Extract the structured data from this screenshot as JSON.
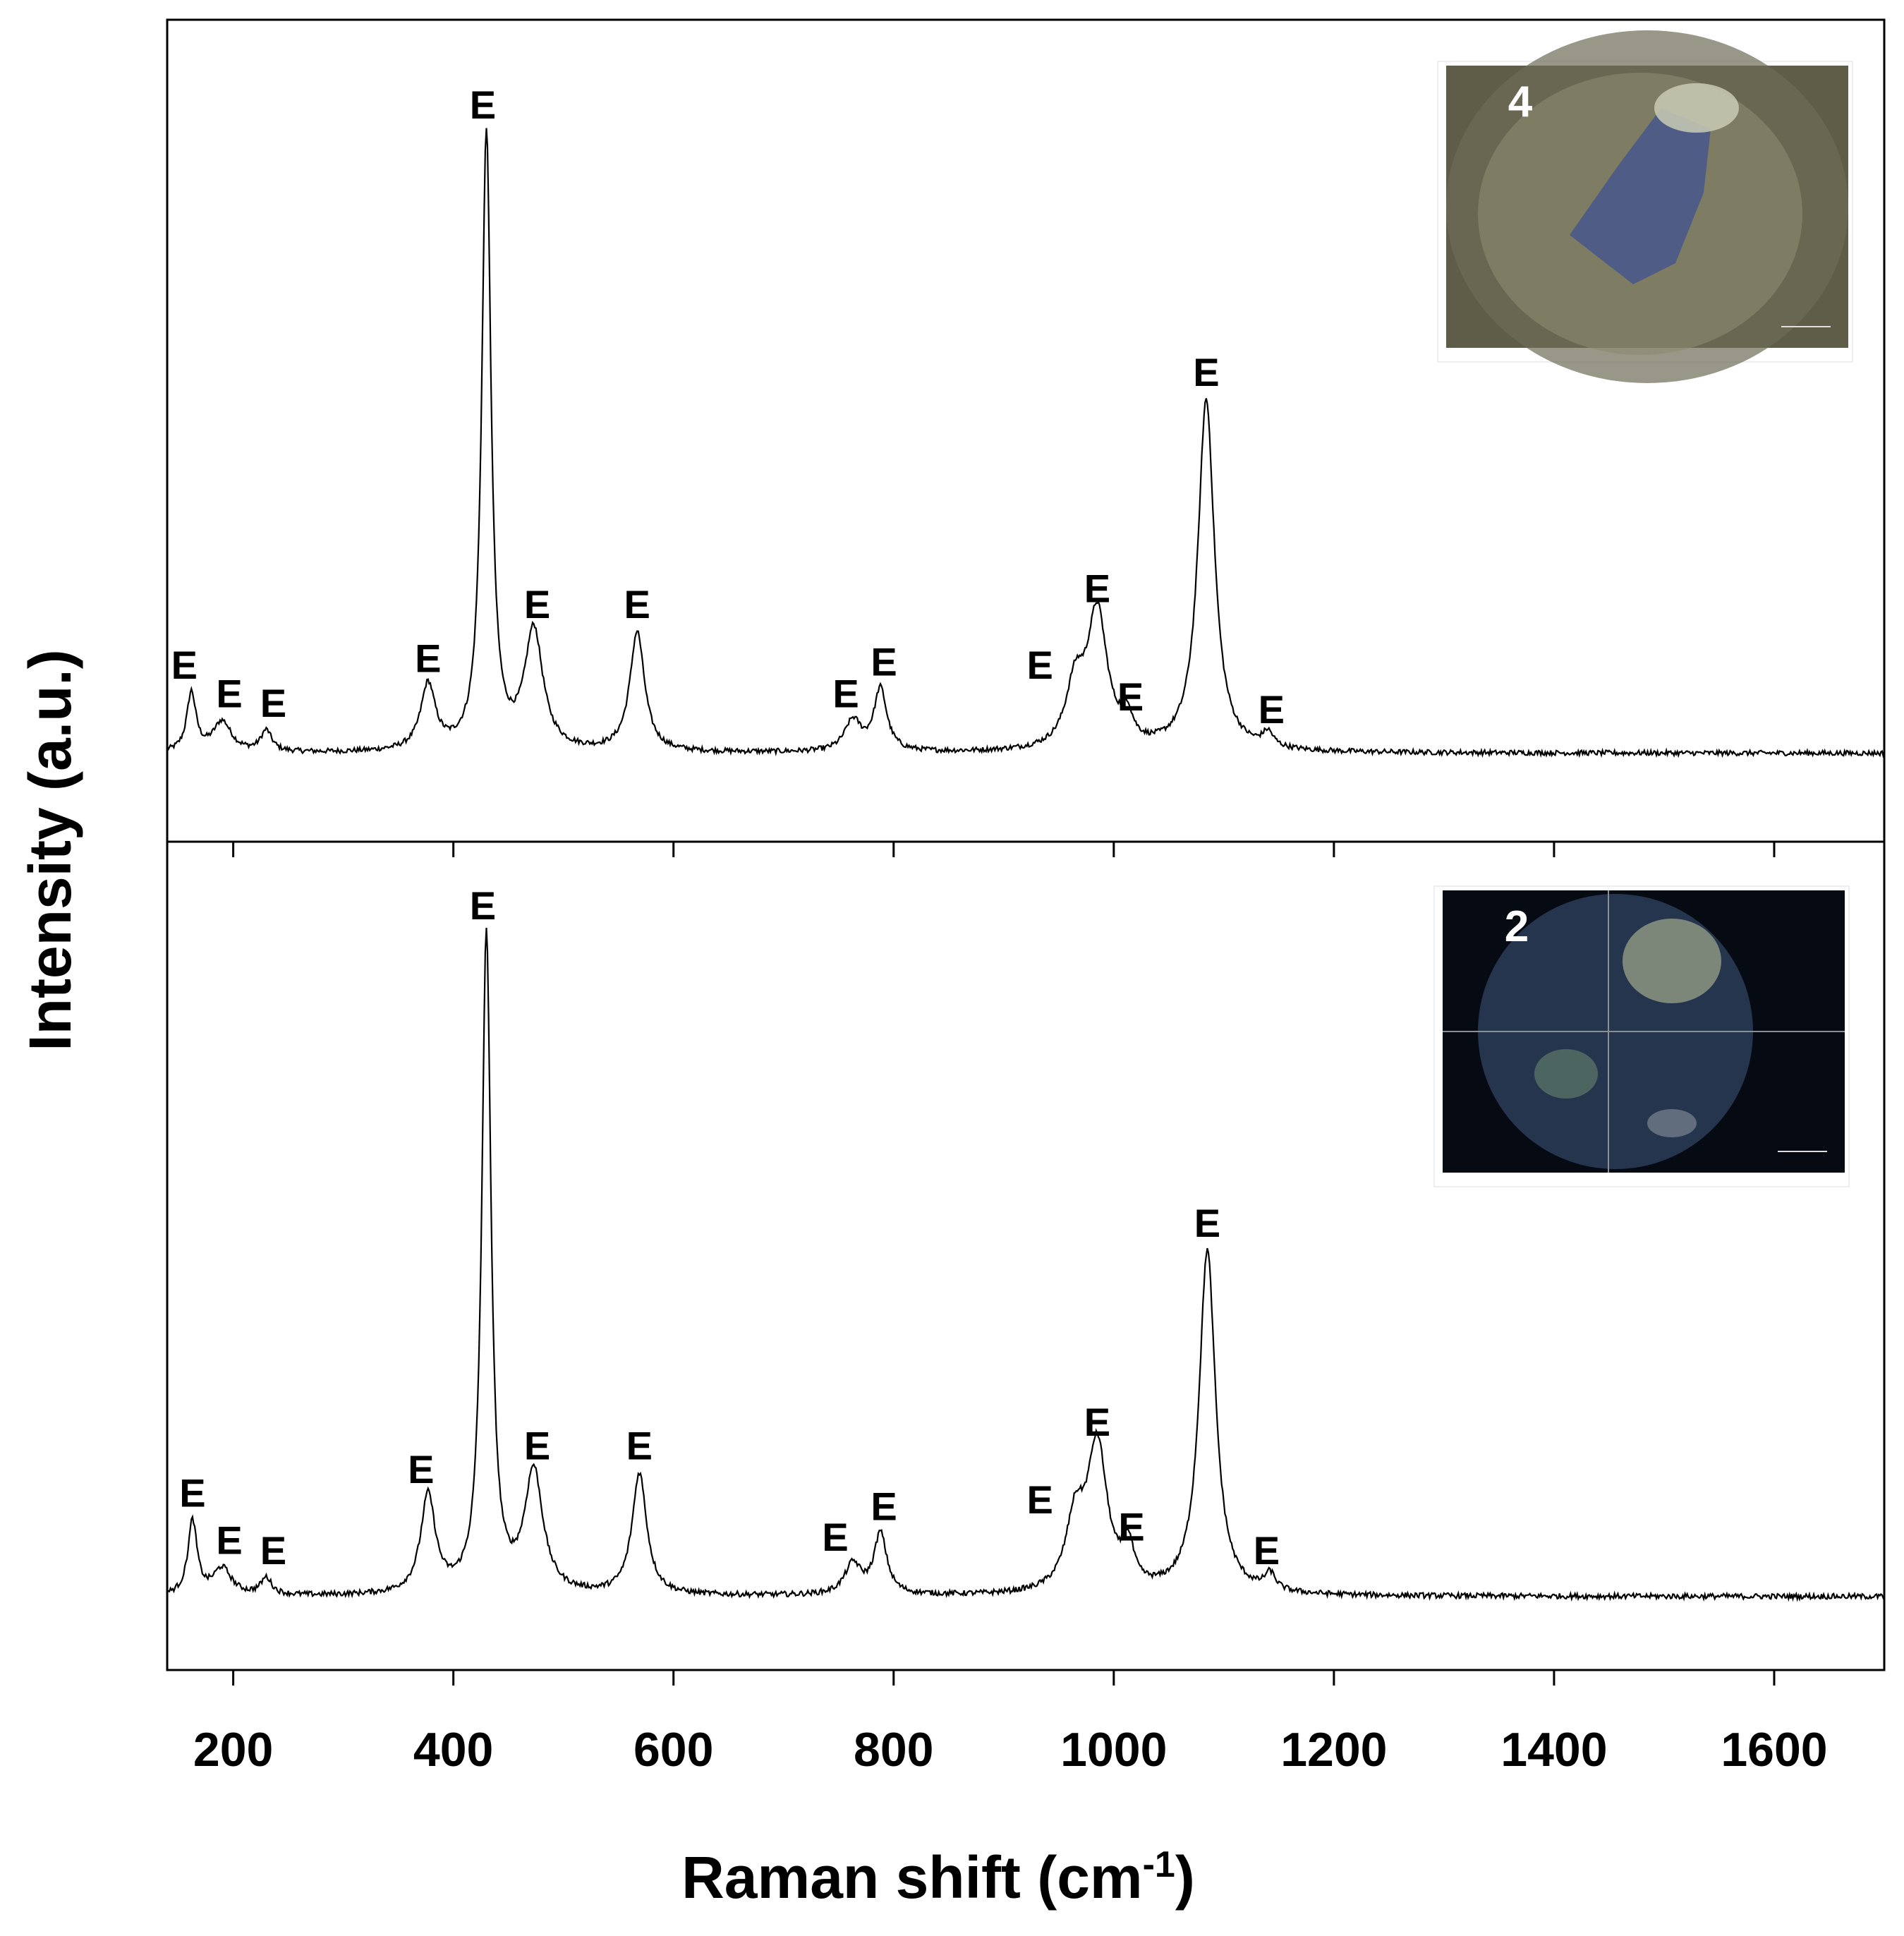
{
  "chart_data": {
    "type": "line",
    "xlabel": "Raman shift (cm",
    "xlabel_superscript": "-1",
    "xlabel_suffix": ")",
    "ylabel": "Intensity (a.u.)",
    "xlim": [
      140,
      1700
    ],
    "x_ticks": [
      200,
      400,
      600,
      800,
      1000,
      1200,
      1400,
      1600
    ],
    "layout": "two stacked panels sharing the x axis; y axis unscaled (arbitrary units)",
    "panels": [
      {
        "inset_label": "4",
        "inset_colors": {
          "background": "#5f5c48",
          "sample": "#4a5a8a",
          "rim": "#c9cbb5"
        },
        "baseline": 0.027,
        "peaks": [
          {
            "x": 162,
            "y": 0.12,
            "label": "E"
          },
          {
            "x": 190,
            "y": 0.075,
            "label": "E"
          },
          {
            "x": 230,
            "y": 0.06,
            "label": "E"
          },
          {
            "x": 377,
            "y": 0.13,
            "label": "E"
          },
          {
            "x": 430,
            "y": 1.0,
            "label": "E"
          },
          {
            "x": 473,
            "y": 0.215,
            "label": "E"
          },
          {
            "x": 567,
            "y": 0.215,
            "label": "E"
          },
          {
            "x": 763,
            "y": 0.075,
            "label": "E"
          },
          {
            "x": 788,
            "y": 0.125,
            "label": "E"
          },
          {
            "x": 965,
            "y": 0.12,
            "label": "E"
          },
          {
            "x": 985,
            "y": 0.24,
            "label": "E"
          },
          {
            "x": 1012,
            "y": 0.07,
            "label": "E"
          },
          {
            "x": 1084,
            "y": 0.58,
            "label": "E"
          },
          {
            "x": 1140,
            "y": 0.05,
            "label": "E"
          }
        ]
      },
      {
        "inset_label": "2",
        "inset_colors": {
          "background": "#060a12",
          "sample": "#2a3a55",
          "rim": "#9aa38a"
        },
        "baseline": 0.02,
        "peaks": [
          {
            "x": 163,
            "y": 0.13,
            "label": "E"
          },
          {
            "x": 190,
            "y": 0.06,
            "label": "E"
          },
          {
            "x": 230,
            "y": 0.045,
            "label": "E"
          },
          {
            "x": 377,
            "y": 0.165,
            "label": "E"
          },
          {
            "x": 430,
            "y": 1.0,
            "label": "E"
          },
          {
            "x": 473,
            "y": 0.2,
            "label": "E"
          },
          {
            "x": 569,
            "y": 0.2,
            "label": "E"
          },
          {
            "x": 763,
            "y": 0.065,
            "label": "E"
          },
          {
            "x": 788,
            "y": 0.11,
            "label": "E"
          },
          {
            "x": 965,
            "y": 0.12,
            "label": "E"
          },
          {
            "x": 985,
            "y": 0.235,
            "label": "E"
          },
          {
            "x": 1013,
            "y": 0.08,
            "label": "E"
          },
          {
            "x": 1085,
            "y": 0.53,
            "label": "E"
          },
          {
            "x": 1142,
            "y": 0.045,
            "label": "E"
          }
        ]
      }
    ]
  }
}
